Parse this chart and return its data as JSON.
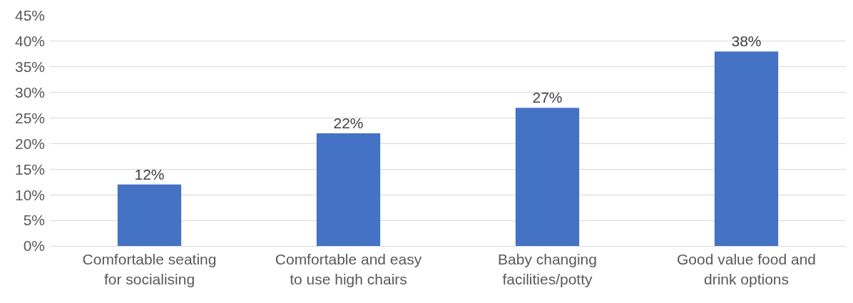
{
  "chart_data": {
    "type": "bar",
    "categories": [
      "Comfortable seating for socialising",
      "Comfortable and easy to use high chairs",
      "Baby changing facilities/potty",
      "Good value food and drink options"
    ],
    "values": [
      12,
      22,
      27,
      38
    ],
    "value_labels": [
      "12%",
      "22%",
      "27%",
      "38%"
    ],
    "color": "#4472c4",
    "ylim": [
      0,
      45
    ],
    "yticks": [
      {
        "value": 0,
        "label": "0%"
      },
      {
        "value": 5,
        "label": "5%"
      },
      {
        "value": 10,
        "label": "10%"
      },
      {
        "value": 15,
        "label": "15%"
      },
      {
        "value": 20,
        "label": "20%"
      },
      {
        "value": 25,
        "label": "25%"
      },
      {
        "value": 30,
        "label": "30%"
      },
      {
        "value": 35,
        "label": "35%"
      },
      {
        "value": 40,
        "label": "40%"
      },
      {
        "value": 45,
        "label": "45%"
      }
    ],
    "grid": "y"
  }
}
